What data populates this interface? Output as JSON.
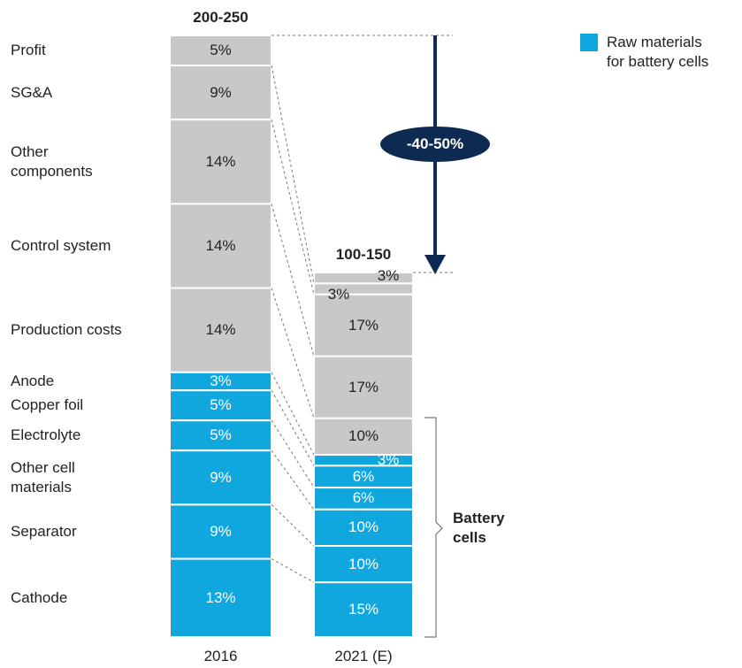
{
  "chart_data": {
    "type": "stacked-bar",
    "categories": [
      "2016",
      "2021 (E)"
    ],
    "total_labels": [
      "200-250",
      "100-150"
    ],
    "series": [
      {
        "name": "Profit",
        "color": "#c8c8c8",
        "values": [
          5,
          3
        ],
        "value_labels": [
          "5%",
          "3%"
        ]
      },
      {
        "name": "SG&A",
        "color": "#c8c8c8",
        "values": [
          9,
          3
        ],
        "value_labels": [
          "9%",
          "3%"
        ]
      },
      {
        "name": "Other\ncomponents",
        "color": "#c8c8c8",
        "values": [
          14,
          17
        ],
        "value_labels": [
          "14%",
          "17%"
        ]
      },
      {
        "name": "Control system",
        "color": "#c8c8c8",
        "values": [
          14,
          17
        ],
        "value_labels": [
          "14%",
          "17%"
        ]
      },
      {
        "name": "Production costs",
        "color": "#c8c8c8",
        "values": [
          14,
          10
        ],
        "value_labels": [
          "14%",
          "10%"
        ]
      },
      {
        "name": "Anode",
        "color": "#0fa7de",
        "values": [
          3,
          3
        ],
        "value_labels": [
          "3%",
          "3%"
        ]
      },
      {
        "name": "Copper foil",
        "color": "#0fa7de",
        "values": [
          5,
          6
        ],
        "value_labels": [
          "5%",
          "6%"
        ]
      },
      {
        "name": "Electrolyte",
        "color": "#0fa7de",
        "values": [
          5,
          6
        ],
        "value_labels": [
          "5%",
          "6%"
        ]
      },
      {
        "name": "Other cell\nmaterials",
        "color": "#0fa7de",
        "values": [
          9,
          10
        ],
        "value_labels": [
          "9%",
          "10%"
        ]
      },
      {
        "name": "Separator",
        "color": "#0fa7de",
        "values": [
          9,
          10
        ],
        "value_labels": [
          "9%",
          "10%"
        ]
      },
      {
        "name": "Cathode",
        "color": "#0fa7de",
        "values": [
          13,
          15
        ],
        "value_labels": [
          "13%",
          "15%"
        ]
      }
    ],
    "legend": {
      "label": "Raw materials\nfor battery cells",
      "color": "#0fa7de"
    },
    "annotations": {
      "change": "-40-50%",
      "bracket": "Battery\ncells"
    }
  }
}
